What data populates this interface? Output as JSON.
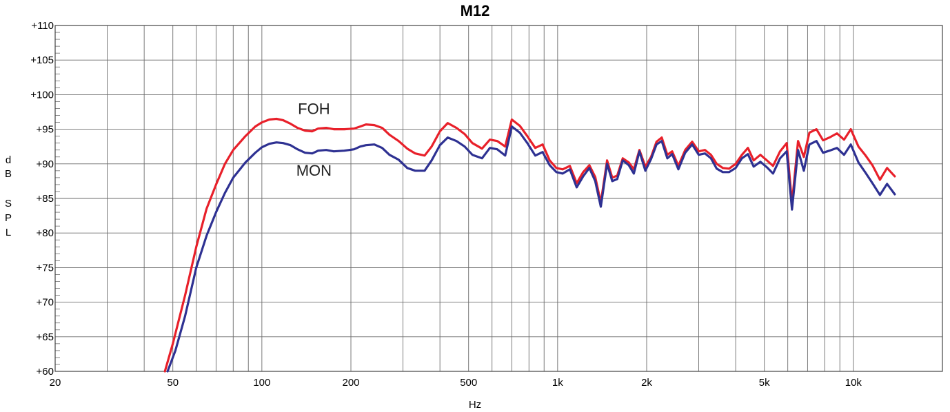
{
  "chart_data": {
    "type": "line",
    "title": "M12",
    "xlabel": "Hz",
    "ylabel_chars": [
      "d",
      "B",
      "S",
      "P",
      "L"
    ],
    "x_scale": "log",
    "xlim": [
      20,
      20000
    ],
    "ylim": [
      60,
      110
    ],
    "grid": true,
    "x_ticks": [
      {
        "value": 20,
        "label": "20"
      },
      {
        "value": 50,
        "label": "50"
      },
      {
        "value": 100,
        "label": "100"
      },
      {
        "value": 200,
        "label": "200"
      },
      {
        "value": 500,
        "label": "500"
      },
      {
        "value": 1000,
        "label": "1k"
      },
      {
        "value": 2000,
        "label": "2k"
      },
      {
        "value": 5000,
        "label": "5k"
      },
      {
        "value": 10000,
        "label": "10k"
      }
    ],
    "y_ticks": [
      {
        "value": 60,
        "label": "+60"
      },
      {
        "value": 65,
        "label": "+65"
      },
      {
        "value": 70,
        "label": "+70"
      },
      {
        "value": 75,
        "label": "+75"
      },
      {
        "value": 80,
        "label": "+80"
      },
      {
        "value": 85,
        "label": "+85"
      },
      {
        "value": 90,
        "label": "+90"
      },
      {
        "value": 95,
        "label": "+95"
      },
      {
        "value": 100,
        "label": "+100"
      },
      {
        "value": 105,
        "label": "+105"
      },
      {
        "value": 110,
        "label": "+110"
      }
    ],
    "series": [
      {
        "name": "FOH",
        "color": "#e8202a",
        "label_at": [
          150,
          97.2
        ],
        "points": [
          [
            47,
            60
          ],
          [
            50,
            64
          ],
          [
            55,
            71
          ],
          [
            60,
            78
          ],
          [
            65,
            83.5
          ],
          [
            70,
            87
          ],
          [
            75,
            90
          ],
          [
            80,
            92
          ],
          [
            88,
            94
          ],
          [
            95,
            95.4
          ],
          [
            100,
            96
          ],
          [
            106,
            96.4
          ],
          [
            112,
            96.5
          ],
          [
            118,
            96.3
          ],
          [
            125,
            95.8
          ],
          [
            132,
            95.2
          ],
          [
            140,
            94.8
          ],
          [
            148,
            94.7
          ],
          [
            155,
            95.1
          ],
          [
            165,
            95.2
          ],
          [
            175,
            95
          ],
          [
            190,
            95
          ],
          [
            205,
            95.1
          ],
          [
            215,
            95.4
          ],
          [
            225,
            95.7
          ],
          [
            240,
            95.6
          ],
          [
            255,
            95.2
          ],
          [
            270,
            94.2
          ],
          [
            290,
            93.3
          ],
          [
            310,
            92.2
          ],
          [
            330,
            91.5
          ],
          [
            355,
            91.2
          ],
          [
            375,
            92.5
          ],
          [
            400,
            94.7
          ],
          [
            425,
            95.9
          ],
          [
            455,
            95.2
          ],
          [
            485,
            94.3
          ],
          [
            515,
            93
          ],
          [
            555,
            92.2
          ],
          [
            590,
            93.5
          ],
          [
            625,
            93.3
          ],
          [
            665,
            92.5
          ],
          [
            700,
            96.4
          ],
          [
            745,
            95.5
          ],
          [
            790,
            94
          ],
          [
            840,
            92.3
          ],
          [
            890,
            92.8
          ],
          [
            940,
            90.5
          ],
          [
            990,
            89.4
          ],
          [
            1040,
            89.2
          ],
          [
            1100,
            89.7
          ],
          [
            1160,
            87.2
          ],
          [
            1220,
            88.8
          ],
          [
            1280,
            89.8
          ],
          [
            1340,
            88.1
          ],
          [
            1400,
            84.4
          ],
          [
            1470,
            90.5
          ],
          [
            1530,
            88
          ],
          [
            1590,
            88.3
          ],
          [
            1660,
            90.8
          ],
          [
            1740,
            90.2
          ],
          [
            1810,
            89.2
          ],
          [
            1890,
            92
          ],
          [
            1980,
            89.6
          ],
          [
            2070,
            91
          ],
          [
            2160,
            93.2
          ],
          [
            2250,
            93.8
          ],
          [
            2350,
            91.3
          ],
          [
            2440,
            91.8
          ],
          [
            2560,
            89.7
          ],
          [
            2700,
            92
          ],
          [
            2850,
            93.2
          ],
          [
            3000,
            91.8
          ],
          [
            3150,
            92
          ],
          [
            3300,
            91.3
          ],
          [
            3450,
            90
          ],
          [
            3620,
            89.4
          ],
          [
            3800,
            89.3
          ],
          [
            4000,
            90
          ],
          [
            4200,
            91.3
          ],
          [
            4400,
            92.3
          ],
          [
            4600,
            90.5
          ],
          [
            4850,
            91.3
          ],
          [
            5100,
            90.5
          ],
          [
            5350,
            89.7
          ],
          [
            5650,
            91.8
          ],
          [
            5950,
            93
          ],
          [
            6200,
            84.3
          ],
          [
            6500,
            93.3
          ],
          [
            6800,
            91
          ],
          [
            7100,
            94.5
          ],
          [
            7500,
            95
          ],
          [
            7900,
            93.4
          ],
          [
            8300,
            93.8
          ],
          [
            8800,
            94.4
          ],
          [
            9300,
            93.5
          ],
          [
            9800,
            95
          ],
          [
            10400,
            92.5
          ],
          [
            11000,
            91.2
          ],
          [
            11600,
            89.8
          ],
          [
            12300,
            87.7
          ],
          [
            13000,
            89.4
          ],
          [
            13800,
            88.2
          ]
        ]
      },
      {
        "name": "MON",
        "color": "#2e3192",
        "label_at": [
          150,
          88.3
        ],
        "points": [
          [
            48,
            60
          ],
          [
            51,
            63
          ],
          [
            55,
            68
          ],
          [
            60,
            75
          ],
          [
            65,
            79.6
          ],
          [
            70,
            83
          ],
          [
            75,
            85.8
          ],
          [
            80,
            88
          ],
          [
            88,
            90.2
          ],
          [
            95,
            91.6
          ],
          [
            100,
            92.4
          ],
          [
            106,
            92.9
          ],
          [
            112,
            93.1
          ],
          [
            118,
            93
          ],
          [
            125,
            92.7
          ],
          [
            132,
            92.1
          ],
          [
            140,
            91.6
          ],
          [
            148,
            91.5
          ],
          [
            155,
            91.9
          ],
          [
            165,
            92
          ],
          [
            175,
            91.8
          ],
          [
            190,
            91.9
          ],
          [
            205,
            92.1
          ],
          [
            215,
            92.5
          ],
          [
            225,
            92.7
          ],
          [
            240,
            92.8
          ],
          [
            255,
            92.3
          ],
          [
            270,
            91.3
          ],
          [
            290,
            90.6
          ],
          [
            310,
            89.4
          ],
          [
            330,
            89
          ],
          [
            355,
            89
          ],
          [
            375,
            90.5
          ],
          [
            400,
            92.7
          ],
          [
            425,
            93.8
          ],
          [
            455,
            93.3
          ],
          [
            485,
            92.5
          ],
          [
            515,
            91.3
          ],
          [
            555,
            90.8
          ],
          [
            590,
            92.3
          ],
          [
            625,
            92.1
          ],
          [
            665,
            91.2
          ],
          [
            700,
            95.4
          ],
          [
            745,
            94.5
          ],
          [
            790,
            93
          ],
          [
            840,
            91.2
          ],
          [
            890,
            91.7
          ],
          [
            940,
            89.8
          ],
          [
            990,
            88.8
          ],
          [
            1040,
            88.6
          ],
          [
            1100,
            89.2
          ],
          [
            1160,
            86.6
          ],
          [
            1220,
            88.2
          ],
          [
            1280,
            89.4
          ],
          [
            1340,
            87.5
          ],
          [
            1400,
            83.8
          ],
          [
            1470,
            90
          ],
          [
            1530,
            87.5
          ],
          [
            1590,
            87.8
          ],
          [
            1660,
            90.5
          ],
          [
            1740,
            89.8
          ],
          [
            1810,
            88.6
          ],
          [
            1890,
            91.8
          ],
          [
            1980,
            89
          ],
          [
            2070,
            90.7
          ],
          [
            2160,
            92.8
          ],
          [
            2250,
            93.3
          ],
          [
            2350,
            90.8
          ],
          [
            2440,
            91.4
          ],
          [
            2560,
            89.2
          ],
          [
            2700,
            91.6
          ],
          [
            2850,
            92.8
          ],
          [
            3000,
            91.3
          ],
          [
            3150,
            91.5
          ],
          [
            3300,
            90.8
          ],
          [
            3450,
            89.3
          ],
          [
            3620,
            88.8
          ],
          [
            3800,
            88.8
          ],
          [
            4000,
            89.4
          ],
          [
            4200,
            90.8
          ],
          [
            4400,
            91.4
          ],
          [
            4600,
            89.6
          ],
          [
            4850,
            90.3
          ],
          [
            5100,
            89.5
          ],
          [
            5350,
            88.6
          ],
          [
            5650,
            90.8
          ],
          [
            5950,
            91.8
          ],
          [
            6200,
            83.4
          ],
          [
            6500,
            92
          ],
          [
            6800,
            89
          ],
          [
            7100,
            92.8
          ],
          [
            7500,
            93.3
          ],
          [
            7900,
            91.6
          ],
          [
            8300,
            91.9
          ],
          [
            8800,
            92.3
          ],
          [
            9300,
            91.3
          ],
          [
            9800,
            92.8
          ],
          [
            10400,
            90.2
          ],
          [
            11000,
            88.7
          ],
          [
            11600,
            87.2
          ],
          [
            12300,
            85.5
          ],
          [
            13000,
            87.1
          ],
          [
            13800,
            85.6
          ]
        ]
      }
    ]
  }
}
